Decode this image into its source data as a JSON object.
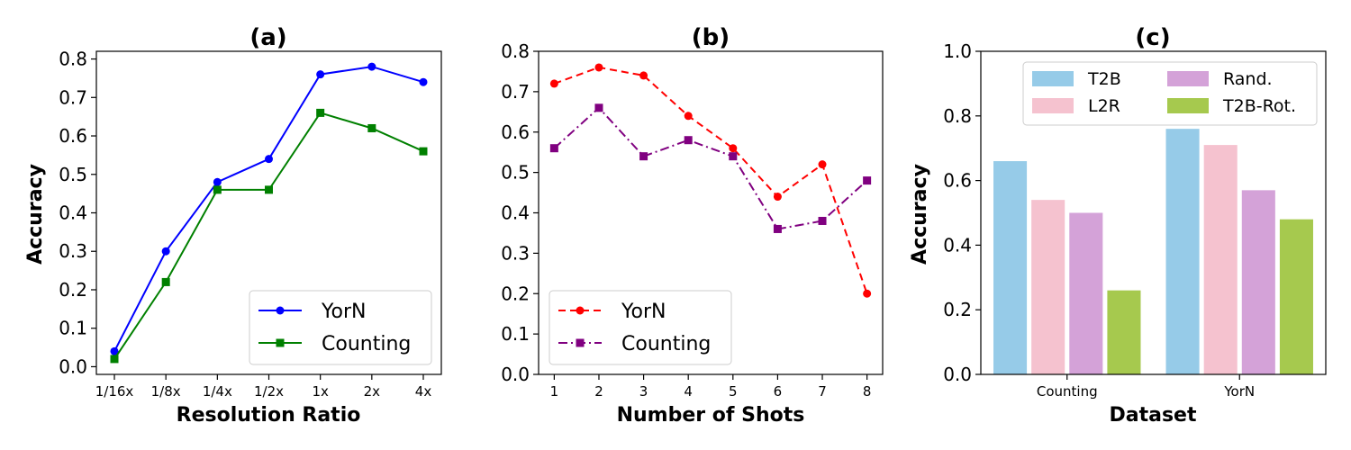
{
  "chart_data": [
    {
      "id": "a",
      "type": "line",
      "title": "(a)",
      "xlabel": "Resolution Ratio",
      "ylabel": "Accuracy",
      "categories": [
        "1/16x",
        "1/8x",
        "1/4x",
        "1/2x",
        "1x",
        "2x",
        "4x"
      ],
      "ylim": [
        -0.02,
        0.82
      ],
      "yticks": [
        "0.0",
        "0.1",
        "0.2",
        "0.3",
        "0.4",
        "0.5",
        "0.6",
        "0.7",
        "0.8"
      ],
      "legend_position": "lower-right",
      "series": [
        {
          "name": "YorN",
          "color": "#0000ff",
          "marker": "circle",
          "dash": "solid",
          "values": [
            0.04,
            0.3,
            0.48,
            0.54,
            0.76,
            0.78,
            0.74
          ]
        },
        {
          "name": "Counting",
          "color": "#008000",
          "marker": "square",
          "dash": "solid",
          "values": [
            0.02,
            0.22,
            0.46,
            0.46,
            0.66,
            0.62,
            0.56
          ]
        }
      ]
    },
    {
      "id": "b",
      "type": "line",
      "title": "(b)",
      "xlabel": "Number of Shots",
      "ylabel": "",
      "categories": [
        "1",
        "2",
        "3",
        "4",
        "5",
        "6",
        "7",
        "8"
      ],
      "ylim": [
        0.0,
        0.8
      ],
      "yticks": [
        "0.0",
        "0.1",
        "0.2",
        "0.3",
        "0.4",
        "0.5",
        "0.6",
        "0.7",
        "0.8"
      ],
      "legend_position": "lower-left",
      "series": [
        {
          "name": "YorN",
          "color": "#ff0000",
          "marker": "circle",
          "dash": "dashed",
          "values": [
            0.72,
            0.76,
            0.74,
            0.64,
            0.56,
            0.44,
            0.52,
            0.2
          ]
        },
        {
          "name": "Counting",
          "color": "#800080",
          "marker": "square",
          "dash": "dashdot",
          "values": [
            0.56,
            0.66,
            0.54,
            0.58,
            0.54,
            0.36,
            0.38,
            0.48
          ]
        }
      ]
    },
    {
      "id": "c",
      "type": "bar",
      "title": "(c)",
      "xlabel": "Dataset",
      "ylabel": "Accuracy",
      "categories": [
        "Counting",
        "YorN"
      ],
      "ylim": [
        0.0,
        1.0
      ],
      "yticks": [
        "0.0",
        "0.2",
        "0.4",
        "0.6",
        "0.8",
        "1.0"
      ],
      "legend_position": "upper-right",
      "series": [
        {
          "name": "T2B",
          "color": "#96cbe8",
          "values": [
            0.66,
            0.76
          ]
        },
        {
          "name": "L2R",
          "color": "#f5c2cf",
          "values": [
            0.54,
            0.71
          ]
        },
        {
          "name": "Rand.",
          "color": "#d4a2d8",
          "values": [
            0.5,
            0.57
          ]
        },
        {
          "name": "T2B-Rot.",
          "color": "#a6c94e",
          "values": [
            0.26,
            0.48
          ]
        }
      ]
    }
  ]
}
